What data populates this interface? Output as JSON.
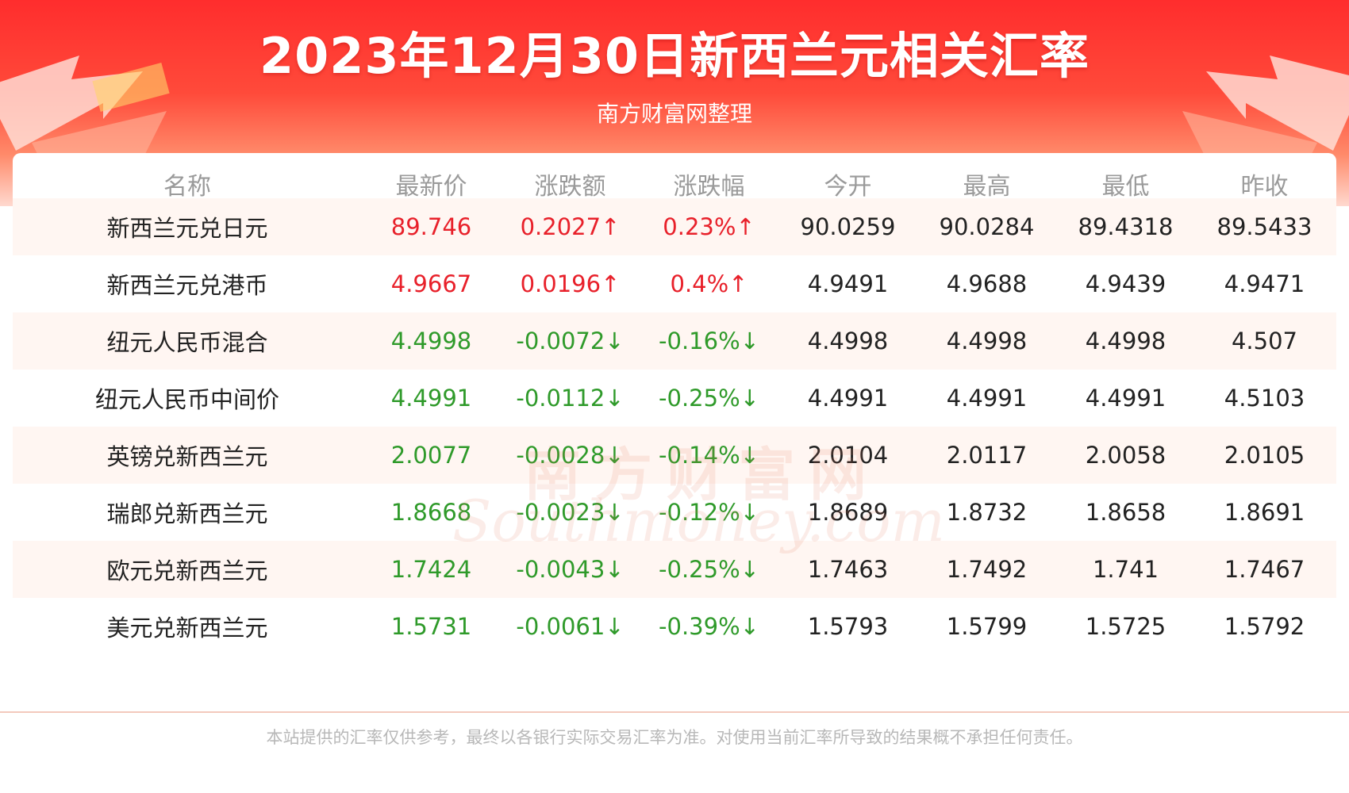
{
  "header": {
    "title": "2023年12月30日新西兰元相关汇率",
    "subtitle": "南方财富网整理"
  },
  "colors": {
    "up": "#e8202a",
    "down": "#2f9a2a",
    "header_red": "#ff2d2d"
  },
  "table": {
    "columns": [
      "名称",
      "最新价",
      "涨跌额",
      "涨跌幅",
      "今开",
      "最高",
      "最低",
      "昨收"
    ],
    "rows": [
      {
        "name": "新西兰元兑日元",
        "latest": "89.746",
        "change": "0.2027↑",
        "change_pct": "0.23%↑",
        "open": "90.0259",
        "high": "90.0284",
        "low": "89.4318",
        "prev_close": "89.5433",
        "trend": "up"
      },
      {
        "name": "新西兰元兑港币",
        "latest": "4.9667",
        "change": "0.0196↑",
        "change_pct": "0.4%↑",
        "open": "4.9491",
        "high": "4.9688",
        "low": "4.9439",
        "prev_close": "4.9471",
        "trend": "up"
      },
      {
        "name": "纽元人民币混合",
        "latest": "4.4998",
        "change": "-0.0072↓",
        "change_pct": "-0.16%↓",
        "open": "4.4998",
        "high": "4.4998",
        "low": "4.4998",
        "prev_close": "4.507",
        "trend": "down"
      },
      {
        "name": "纽元人民币中间价",
        "latest": "4.4991",
        "change": "-0.0112↓",
        "change_pct": "-0.25%↓",
        "open": "4.4991",
        "high": "4.4991",
        "low": "4.4991",
        "prev_close": "4.5103",
        "trend": "down"
      },
      {
        "name": "英镑兑新西兰元",
        "latest": "2.0077",
        "change": "-0.0028↓",
        "change_pct": "-0.14%↓",
        "open": "2.0104",
        "high": "2.0117",
        "low": "2.0058",
        "prev_close": "2.0105",
        "trend": "down"
      },
      {
        "name": "瑞郎兑新西兰元",
        "latest": "1.8668",
        "change": "-0.0023↓",
        "change_pct": "-0.12%↓",
        "open": "1.8689",
        "high": "1.8732",
        "low": "1.8658",
        "prev_close": "1.8691",
        "trend": "down"
      },
      {
        "name": "欧元兑新西兰元",
        "latest": "1.7424",
        "change": "-0.0043↓",
        "change_pct": "-0.25%↓",
        "open": "1.7463",
        "high": "1.7492",
        "low": "1.741",
        "prev_close": "1.7467",
        "trend": "down"
      },
      {
        "name": "美元兑新西兰元",
        "latest": "1.5731",
        "change": "-0.0061↓",
        "change_pct": "-0.39%↓",
        "open": "1.5793",
        "high": "1.5799",
        "low": "1.5725",
        "prev_close": "1.5792",
        "trend": "down"
      }
    ]
  },
  "watermark": {
    "cn": "南方财富网",
    "en": "Southmoney.com"
  },
  "footer": {
    "disclaimer": "本站提供的汇率仅供参考，最终以各银行实际交易汇率为准。对使用当前汇率所导致的结果概不承担任何责任。"
  }
}
